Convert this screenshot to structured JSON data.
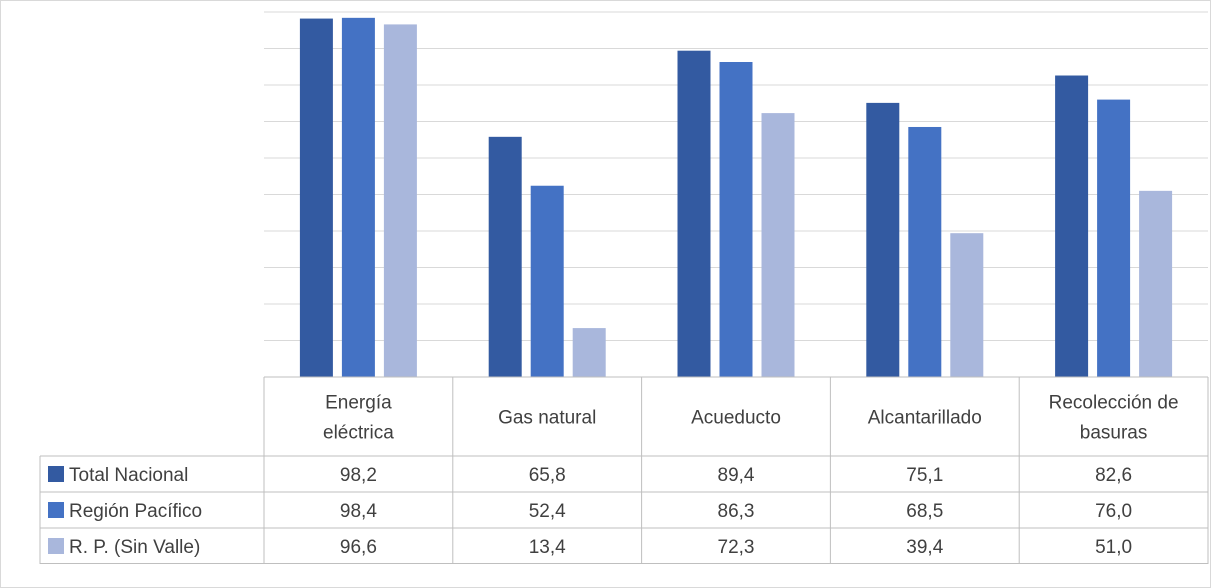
{
  "chart_data": {
    "type": "bar",
    "title": "",
    "xlabel": "",
    "ylabel": "",
    "ylim": [
      0,
      100
    ],
    "grid": true,
    "legend": "data-table",
    "categories": [
      [
        "Energía",
        "eléctrica"
      ],
      [
        "Gas natural"
      ],
      [
        "Acueducto"
      ],
      [
        "Alcantarillado"
      ],
      [
        "Recolección de",
        "basuras"
      ]
    ],
    "series": [
      {
        "name": "Total Nacional",
        "color": "#335aa1",
        "values": [
          98.2,
          65.8,
          89.4,
          75.1,
          82.6
        ],
        "labels": [
          "98,2",
          "65,8",
          "89,4",
          "75,1",
          "82,6"
        ]
      },
      {
        "name": "Región Pacífico",
        "color": "#4472c4",
        "values": [
          98.4,
          52.4,
          86.3,
          68.5,
          76.0
        ],
        "labels": [
          "98,4",
          "52,4",
          "86,3",
          "68,5",
          "76,0"
        ]
      },
      {
        "name": "R. P. (Sin Valle)",
        "color": "#a9b7dc",
        "values": [
          96.6,
          13.4,
          72.3,
          39.4,
          51.0
        ],
        "labels": [
          "96,6",
          "13,4",
          "72,3",
          "39,4",
          "51,0"
        ]
      }
    ]
  }
}
